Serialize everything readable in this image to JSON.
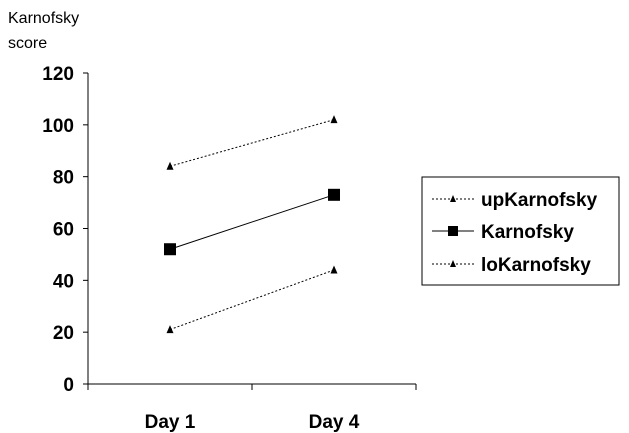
{
  "chart_data": {
    "type": "line",
    "ylabel_lines": [
      "Karnofsky",
      "score"
    ],
    "xlabel": "",
    "categories": [
      "Day 1",
      "Day 4"
    ],
    "ylim": [
      0,
      120
    ],
    "yticks": [
      0,
      20,
      40,
      60,
      80,
      100,
      120
    ],
    "grid": false,
    "legend_position": "right",
    "series": [
      {
        "name": "upKarnofsky",
        "values": [
          84,
          102
        ],
        "style": "dotted",
        "marker": "triangle",
        "color": "#000000"
      },
      {
        "name": "Karnofsky",
        "values": [
          52,
          73
        ],
        "style": "solid",
        "marker": "square",
        "color": "#000000"
      },
      {
        "name": "loKarnofsky",
        "values": [
          21,
          44
        ],
        "style": "dotted",
        "marker": "triangle",
        "color": "#000000"
      }
    ]
  }
}
